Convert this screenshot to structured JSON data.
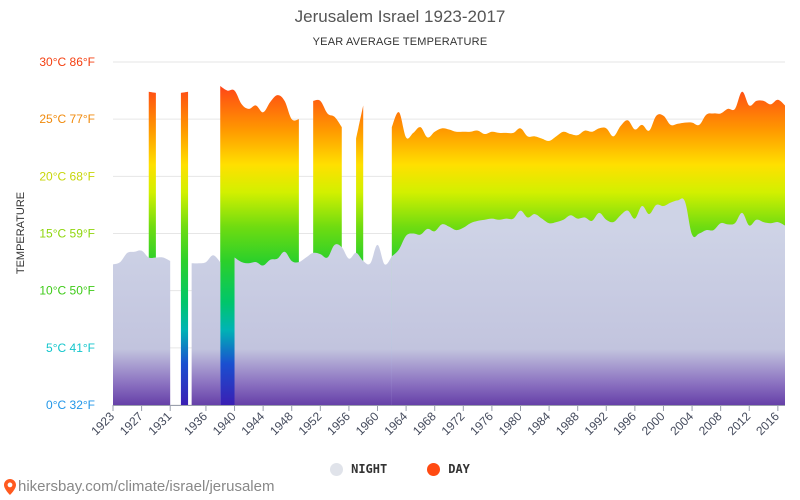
{
  "header": {
    "title": "Jerusalem Israel 1923-2017",
    "subtitle": "YEAR AVERAGE TEMPERATURE"
  },
  "legend": {
    "night_label": "NIGHT",
    "day_label": "DAY",
    "night_color": "#e0e3ea",
    "day_color": "#ff4a12"
  },
  "footer": {
    "source": "hikersbay.com/climate/israel/jerusalem",
    "pin_color": "#ff5a1f"
  },
  "chart_data": {
    "type": "area",
    "title": "Jerusalem Israel 1923-2017",
    "subtitle": "YEAR AVERAGE TEMPERATURE",
    "xlabel": "",
    "ylabel": "TEMPERATURE",
    "xlim": [
      1923,
      2017
    ],
    "ylim": [
      0,
      30
    ],
    "y_ticks": [
      {
        "value": 0,
        "label": "0°C 32°F",
        "color": "#2196e8"
      },
      {
        "value": 5,
        "label": "5°C 41°F",
        "color": "#13c6cc"
      },
      {
        "value": 10,
        "label": "10°C 50°F",
        "color": "#3ecb18"
      },
      {
        "value": 15,
        "label": "15°C 59°F",
        "color": "#8fd60c"
      },
      {
        "value": 20,
        "label": "20°C 68°F",
        "color": "#c8d60a"
      },
      {
        "value": 25,
        "label": "25°C 77°F",
        "color": "#f08a0c"
      },
      {
        "value": 30,
        "label": "30°C 86°F",
        "color": "#f43f10"
      }
    ],
    "x_ticks": [
      1923,
      1927,
      1931,
      1936,
      1940,
      1944,
      1948,
      1952,
      1956,
      1960,
      1964,
      1968,
      1972,
      1976,
      1980,
      1984,
      1988,
      1992,
      1996,
      2000,
      2004,
      2008,
      2012,
      2016
    ],
    "grid": true,
    "legend_position": "bottom",
    "series": [
      {
        "name": "DAY",
        "segments": [
          {
            "x": [
              1928,
              1929
            ],
            "values": [
              27.4,
              27.3
            ]
          },
          {
            "x": [
              1932.5,
              1933.5
            ],
            "values": [
              27.3,
              27.4
            ]
          },
          {
            "x": [
              1938,
              1939,
              1940,
              1941,
              1942,
              1943,
              1944,
              1945,
              1946,
              1947,
              1948,
              1949
            ],
            "values": [
              27.9,
              27.5,
              27.5,
              26.3,
              25.9,
              26.2,
              25.6,
              26.5,
              27.1,
              26.6,
              25.0,
              25.0
            ]
          },
          {
            "x": [
              1951,
              1952,
              1953,
              1954,
              1955
            ],
            "values": [
              26.6,
              26.6,
              25.5,
              25.2,
              24.3
            ]
          },
          {
            "x": [
              1957,
              1958
            ],
            "values": [
              23.3,
              26.2
            ]
          },
          {
            "x": [
              1962,
              1963,
              1964,
              1965,
              1966,
              1967,
              1968,
              1969,
              1970,
              1971,
              1972,
              1973,
              1974,
              1975,
              1976,
              1977,
              1978,
              1979,
              1980,
              1981,
              1982,
              1983,
              1984,
              1985,
              1986,
              1987,
              1988,
              1989,
              1990,
              1991,
              1992,
              1993,
              1994,
              1995,
              1996,
              1997,
              1998,
              1999,
              2000,
              2001,
              2002,
              2003,
              2004,
              2005,
              2006,
              2007,
              2008,
              2009,
              2010,
              2011,
              2012,
              2013,
              2014,
              2015,
              2016,
              2017
            ],
            "values": [
              24.3,
              25.6,
              23.4,
              23.8,
              24.3,
              23.4,
              23.9,
              24.2,
              24.1,
              23.9,
              23.9,
              23.9,
              24.0,
              23.7,
              23.9,
              23.8,
              23.8,
              23.8,
              24.2,
              23.5,
              23.5,
              23.3,
              23.1,
              23.5,
              23.9,
              23.7,
              23.6,
              24.0,
              23.9,
              24.2,
              24.2,
              23.5,
              24.4,
              24.9,
              24.1,
              24.5,
              24.0,
              25.3,
              25.3,
              24.5,
              24.6,
              24.7,
              24.7,
              24.5,
              25.4,
              25.5,
              25.5,
              25.9,
              25.9,
              27.4,
              26.2,
              26.6,
              26.6,
              26.3,
              26.7,
              26.2
            ]
          }
        ]
      },
      {
        "name": "NIGHT",
        "segments": [
          {
            "x": [
              1923,
              1924,
              1925,
              1926,
              1927,
              1928,
              1929,
              1930,
              1931
            ],
            "values": [
              12.3,
              12.5,
              13.3,
              13.4,
              13.5,
              12.9,
              12.9,
              12.9,
              12.6
            ]
          },
          {
            "x": [
              1934,
              1935,
              1936,
              1937,
              1938
            ],
            "values": [
              12.4,
              12.4,
              12.5,
              13.1,
              12.5
            ]
          },
          {
            "x": [
              1940,
              1941,
              1942,
              1943,
              1944,
              1945,
              1946,
              1947,
              1948,
              1949,
              1950,
              1951,
              1952,
              1953,
              1954,
              1955,
              1956,
              1957,
              1958,
              1959,
              1960,
              1961,
              1962
            ],
            "values": [
              12.9,
              12.5,
              12.4,
              12.5,
              12.2,
              12.7,
              12.8,
              13.4,
              12.6,
              12.5,
              12.9,
              13.3,
              13.2,
              12.9,
              14.0,
              13.8,
              12.8,
              13.3,
              12.6,
              12.4,
              14.0,
              12.3,
              13.0
            ]
          },
          {
            "x": [
              1962,
              1963,
              1964,
              1965,
              1966,
              1967,
              1968,
              1969,
              1970,
              1971,
              1972,
              1973,
              1974,
              1975,
              1976,
              1977,
              1978,
              1979,
              1980,
              1981,
              1982,
              1983,
              1984,
              1985,
              1986,
              1987,
              1988,
              1989,
              1990,
              1991,
              1992,
              1993,
              1994,
              1995,
              1996,
              1997,
              1998,
              1999,
              2000,
              2001,
              2002,
              2003,
              2004,
              2005,
              2006,
              2007,
              2008,
              2009,
              2010,
              2011,
              2012,
              2013,
              2014,
              2015,
              2016,
              2017
            ],
            "values": [
              13.0,
              13.6,
              14.8,
              15.0,
              14.9,
              15.4,
              15.2,
              15.8,
              15.6,
              15.3,
              15.5,
              15.9,
              16.1,
              16.2,
              16.3,
              16.2,
              16.3,
              16.3,
              17.0,
              16.4,
              16.7,
              16.3,
              15.9,
              16.0,
              16.2,
              16.6,
              16.3,
              16.4,
              16.1,
              16.8,
              16.2,
              16.0,
              16.6,
              17.0,
              16.3,
              17.4,
              16.7,
              17.5,
              17.4,
              17.7,
              17.9,
              17.8,
              14.9,
              15.0,
              15.3,
              15.3,
              15.9,
              15.8,
              15.9,
              16.8,
              15.7,
              16.2,
              16.0,
              15.9,
              16.0,
              15.7
            ]
          }
        ]
      }
    ]
  }
}
